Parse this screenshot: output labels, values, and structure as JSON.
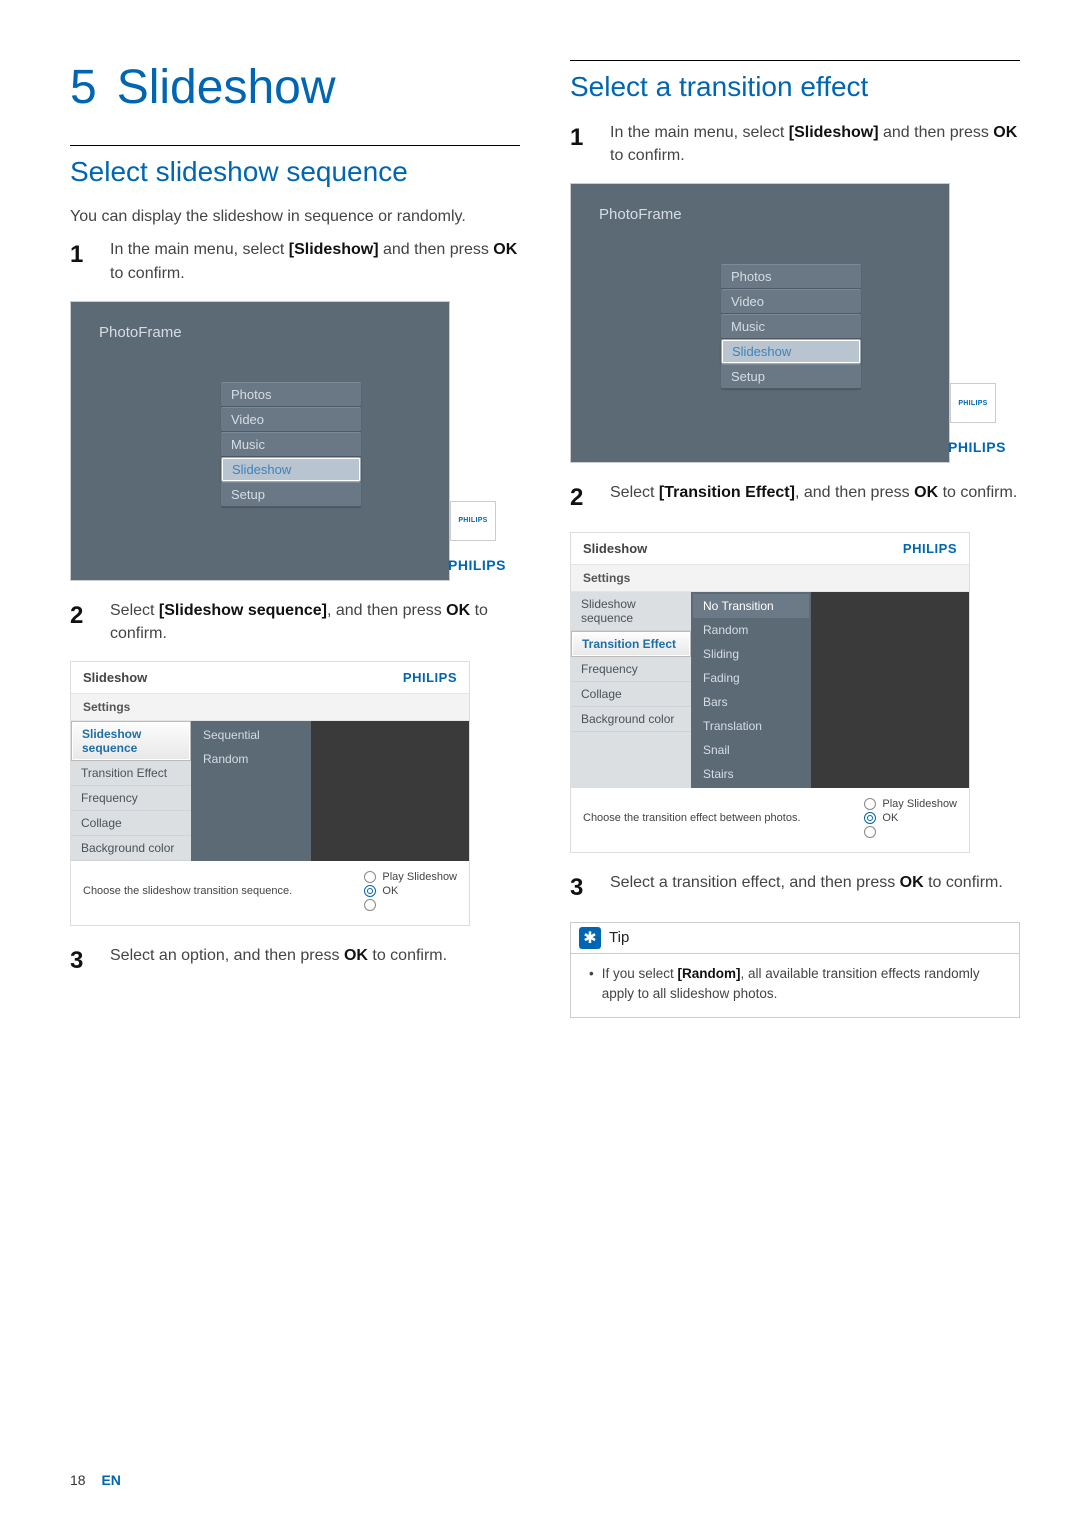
{
  "page": {
    "number": "18",
    "lang": "EN"
  },
  "chapter": {
    "num": "5",
    "title": "Slideshow"
  },
  "left": {
    "section_title": "Select slideshow sequence",
    "intro": "You can display the slideshow in sequence or randomly.",
    "step1_a": "In the main menu, select ",
    "step1_b": "[Slideshow]",
    "step1_c": " and then press ",
    "step1_d": "OK",
    "step1_e": " to confirm.",
    "step2_a": "Select ",
    "step2_b": "[Slideshow sequence]",
    "step2_c": ", and then press ",
    "step2_d": "OK",
    "step2_e": " to confirm.",
    "step3_a": "Select an option, and then press ",
    "step3_b": "OK",
    "step3_c": " to confirm.",
    "pfA": {
      "title": "PhotoFrame",
      "items": [
        "Photos",
        "Video",
        "Music",
        "Slideshow",
        "Setup"
      ],
      "selected_index": 3,
      "brand_small": "PHILIPS",
      "brand": "PHILIPS"
    },
    "pfB": {
      "title": "Slideshow",
      "brand": "PHILIPS",
      "sub": "Settings",
      "left_items": [
        "Slideshow sequence",
        "Transition Effect",
        "Frequency",
        "Collage",
        "Background color"
      ],
      "left_selected": 0,
      "mid_items": [
        "Sequential",
        "Random"
      ],
      "mid_selected": -1,
      "hint": "Choose the slideshow transition sequence.",
      "ctrl_top": "Play Slideshow",
      "ctrl_mid": "OK"
    }
  },
  "right": {
    "section_title": "Select a transition effect",
    "step1_a": "In the main menu, select ",
    "step1_b": "[Slideshow]",
    "step1_c": " and then press ",
    "step1_d": "OK",
    "step1_e": " to confirm.",
    "step2_a": "Select ",
    "step2_b": "[Transition Effect]",
    "step2_c": ", and then press ",
    "step2_d": "OK",
    "step2_e": " to confirm.",
    "step3_a": "Select a transition effect, and then press ",
    "step3_b": "OK",
    "step3_c": " to confirm.",
    "pfA": {
      "title": "PhotoFrame",
      "items": [
        "Photos",
        "Video",
        "Music",
        "Slideshow",
        "Setup"
      ],
      "selected_index": 3,
      "brand_small": "PHILIPS",
      "brand": "PHILIPS"
    },
    "pfB": {
      "title": "Slideshow",
      "brand": "PHILIPS",
      "sub": "Settings",
      "left_items": [
        "Slideshow sequence",
        "Transition Effect",
        "Frequency",
        "Collage",
        "Background color"
      ],
      "left_selected": 1,
      "mid_items": [
        "No Transition",
        "Random",
        "Sliding",
        "Fading",
        "Bars",
        "Translation",
        "Snail",
        "Stairs"
      ],
      "mid_selected": 0,
      "hint": "Choose the transition effect between photos.",
      "ctrl_top": "Play Slideshow",
      "ctrl_mid": "OK"
    },
    "tip": {
      "label": "Tip",
      "text_a": "If you select ",
      "text_b": "[Random]",
      "text_c": ", all available transition effects randomly apply to all slideshow photos."
    }
  }
}
